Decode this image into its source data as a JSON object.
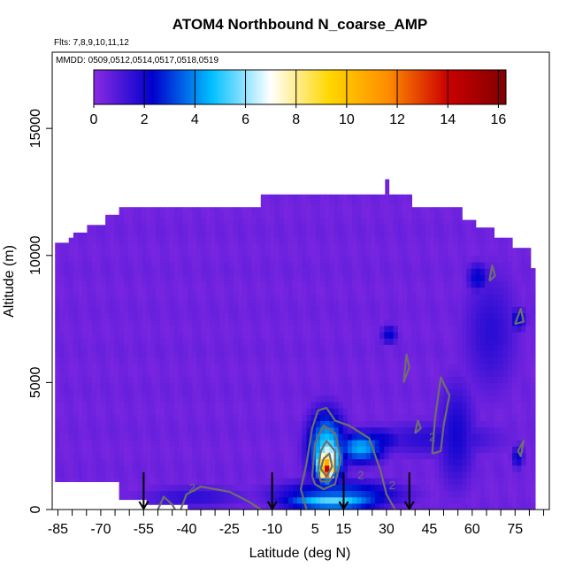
{
  "chart_data": {
    "type": "heatmap",
    "title": "ATOM4 Northbound N_coarse_AMP",
    "subtitle_flights": "Flts: 7,8,9,10,11,12",
    "subtitle_dates": "MMDD: 0509,0512,0514,0517,0518,0519",
    "xlabel": "Latitude (deg N)",
    "ylabel": "Altitude (m)",
    "xlim": [
      -87,
      87
    ],
    "ylim": [
      0,
      18000
    ],
    "x_ticks": [
      -85,
      -70,
      -55,
      -40,
      -25,
      -10,
      5,
      15,
      30,
      45,
      60,
      75
    ],
    "y_ticks": [
      0,
      5000,
      10000,
      15000
    ],
    "colorbar": {
      "min": 0,
      "max": 16.3,
      "ticks": [
        0,
        2,
        4,
        6,
        8,
        10,
        12,
        14,
        16
      ],
      "colors": [
        "#8a2be2",
        "#0000cd",
        "#00bfff",
        "#ffffff",
        "#ffd700",
        "#ff8c00",
        "#cc0000",
        "#800000"
      ]
    },
    "contour_level_labels": [
      "2",
      "2",
      "2",
      "2"
    ],
    "data_columns": [
      {
        "lat": -85,
        "top": 10500,
        "bottom": 1100
      },
      {
        "lat": -82,
        "top": 10700,
        "bottom": 1100
      },
      {
        "lat": -80,
        "top": 10900,
        "bottom": 1100
      },
      {
        "lat": -75,
        "top": 11200,
        "bottom": 1100
      },
      {
        "lat": -70,
        "top": 11600,
        "bottom": 1100
      },
      {
        "lat": -65,
        "top": 11900,
        "bottom": 400
      },
      {
        "lat": -55,
        "top": 11900,
        "bottom": 200
      },
      {
        "lat": -40,
        "top": 11900,
        "bottom": 0
      },
      {
        "lat": -25,
        "top": 11900,
        "bottom": 0
      },
      {
        "lat": -15,
        "top": 12400,
        "bottom": 0
      },
      {
        "lat": 0,
        "top": 12400,
        "bottom": 0
      },
      {
        "lat": 15,
        "top": 12400,
        "bottom": 0
      },
      {
        "lat": 30,
        "top": 12400,
        "bottom": 0
      },
      {
        "lat": 38,
        "top": 11900,
        "bottom": 0
      },
      {
        "lat": 45,
        "top": 11900,
        "bottom": 0
      },
      {
        "lat": 55,
        "top": 11400,
        "bottom": 0
      },
      {
        "lat": 60,
        "top": 11100,
        "bottom": 0
      },
      {
        "lat": 67,
        "top": 10700,
        "bottom": 0
      },
      {
        "lat": 73,
        "top": 10300,
        "bottom": 0
      },
      {
        "lat": 79,
        "top": 9500,
        "bottom": 0
      },
      {
        "lat": 81,
        "top": 0,
        "bottom": 0
      }
    ],
    "features": [
      {
        "lat": [
          -12,
          38
        ],
        "alt": [
          0,
          1200
        ],
        "value": 3.5
      },
      {
        "lat": [
          -8,
          30
        ],
        "alt": [
          0,
          700
        ],
        "value": 5.5
      },
      {
        "lat": [
          -60,
          -15
        ],
        "alt": [
          0,
          1000
        ],
        "value": 1.6
      },
      {
        "lat": [
          12,
          30
        ],
        "alt": [
          1800,
          3100
        ],
        "value": 4.5
      },
      {
        "lat": [
          14,
          38
        ],
        "alt": [
          2200,
          3300
        ],
        "value": 2.5
      },
      {
        "lat": [
          20,
          75
        ],
        "alt": [
          2000,
          3600
        ],
        "value": 1.7
      },
      {
        "lat": [
          2,
          16
        ],
        "alt": [
          800,
          4000
        ],
        "value": 5.2
      },
      {
        "lat": [
          4,
          15
        ],
        "alt": [
          1000,
          3200
        ],
        "value": 7.0
      },
      {
        "lat": [
          5,
          13
        ],
        "alt": [
          1100,
          2600
        ],
        "value": 9.5
      },
      {
        "lat": [
          6,
          12
        ],
        "alt": [
          1200,
          2200
        ],
        "value": 12.0
      },
      {
        "lat": [
          7,
          11
        ],
        "alt": [
          1200,
          1900
        ],
        "value": 15.0
      },
      {
        "lat": [
          47,
          62
        ],
        "alt": [
          400,
          5500
        ],
        "value": 2.0
      },
      {
        "lat": [
          55,
          78
        ],
        "alt": [
          4000,
          10000
        ],
        "value": 1.6
      },
      {
        "lat": [
          58,
          66
        ],
        "alt": [
          8500,
          9800
        ],
        "value": 2.4
      },
      {
        "lat": [
          73,
          79
        ],
        "alt": [
          7000,
          8000
        ],
        "value": 2.4
      },
      {
        "lat": [
          74,
          78
        ],
        "alt": [
          1600,
          2600
        ],
        "value": 2.4
      },
      {
        "lat": [
          28,
          34
        ],
        "alt": [
          6500,
          7300
        ],
        "value": 2.4
      }
    ],
    "contours": [
      [
        [
          -42,
          0
        ],
        [
          -40,
          600
        ],
        [
          -35,
          900
        ],
        [
          -25,
          700
        ],
        [
          -18,
          300
        ],
        [
          -14,
          0
        ]
      ],
      [
        [
          -50,
          0
        ],
        [
          -48,
          500
        ],
        [
          -45,
          200
        ],
        [
          -44,
          0
        ]
      ],
      [
        [
          2,
          0
        ],
        [
          0,
          800
        ],
        [
          2,
          1800
        ],
        [
          4,
          3200
        ],
        [
          6,
          3900
        ],
        [
          9,
          4000
        ],
        [
          12,
          3500
        ],
        [
          17,
          3300
        ],
        [
          24,
          2800
        ],
        [
          28,
          1500
        ],
        [
          30,
          600
        ],
        [
          33,
          0
        ]
      ],
      [
        [
          4,
          1300
        ],
        [
          5,
          2600
        ],
        [
          8,
          3300
        ],
        [
          12,
          3000
        ],
        [
          14,
          2000
        ],
        [
          12,
          1000
        ],
        [
          8,
          800
        ],
        [
          5,
          1000
        ],
        [
          4,
          1300
        ]
      ],
      [
        [
          6,
          1500
        ],
        [
          7,
          2300
        ],
        [
          9,
          2700
        ],
        [
          12,
          2300
        ],
        [
          12,
          1500
        ],
        [
          10,
          1100
        ],
        [
          7,
          1100
        ],
        [
          6,
          1500
        ]
      ],
      [
        [
          7,
          1600
        ],
        [
          8,
          2000
        ],
        [
          10,
          2200
        ],
        [
          11,
          1700
        ],
        [
          9,
          1300
        ],
        [
          7,
          1600
        ]
      ],
      [
        [
          46,
          2200
        ],
        [
          47,
          3600
        ],
        [
          49,
          5200
        ],
        [
          52,
          4500
        ],
        [
          50,
          3300
        ],
        [
          49,
          2300
        ],
        [
          46,
          2200
        ]
      ],
      [
        [
          40,
          3000
        ],
        [
          42,
          3200
        ],
        [
          41,
          3500
        ],
        [
          40,
          3000
        ]
      ],
      [
        [
          66,
          9000
        ],
        [
          67,
          9600
        ],
        [
          68,
          9200
        ],
        [
          66,
          9000
        ]
      ],
      [
        [
          75,
          7300
        ],
        [
          77,
          7900
        ],
        [
          78,
          7400
        ],
        [
          75,
          7300
        ]
      ],
      [
        [
          76,
          2300
        ],
        [
          78,
          2700
        ],
        [
          77,
          2100
        ],
        [
          76,
          2300
        ]
      ],
      [
        [
          36,
          5000
        ],
        [
          38,
          5600
        ],
        [
          37,
          6100
        ],
        [
          36,
          5000
        ]
      ]
    ],
    "arrows_lat": [
      -55,
      -10,
      15,
      38
    ]
  }
}
